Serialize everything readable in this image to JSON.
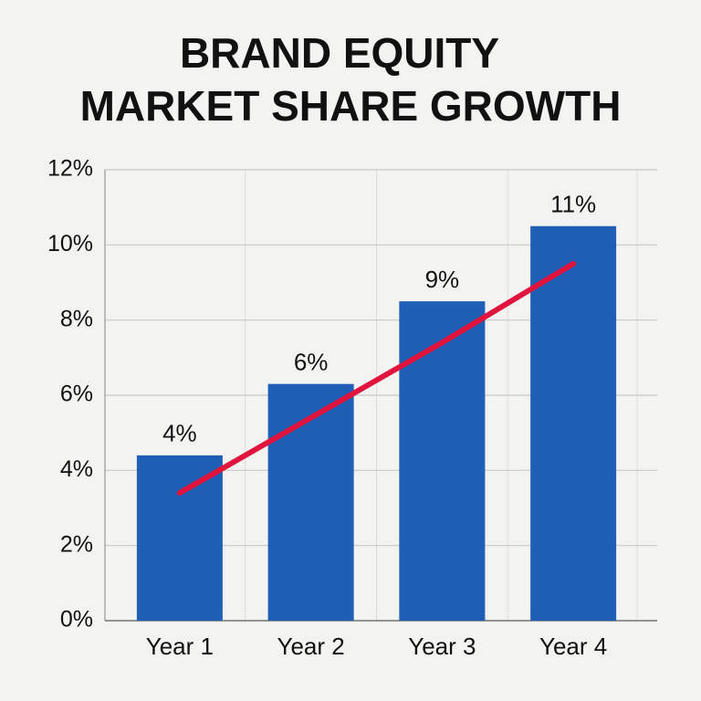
{
  "chart_data": {
    "type": "bar",
    "title": [
      "BRAND EQUITY",
      "MARKET SHARE GROWTH"
    ],
    "categories": [
      "Year 1",
      "Year 2",
      "Year 3",
      "Year 4"
    ],
    "values": [
      4.4,
      6.3,
      8.5,
      10.5
    ],
    "value_labels": [
      "4%",
      "6%",
      "9%",
      "11%"
    ],
    "color": "#1f5fb5",
    "trend": {
      "color": "#e0143c",
      "values": [
        3.4,
        5.4,
        7.4,
        9.5
      ]
    },
    "ylim": [
      0,
      12
    ],
    "yticks": [
      {
        "value": 0,
        "label": "0%"
      },
      {
        "value": 2,
        "label": "2%"
      },
      {
        "value": 4,
        "label": "4%"
      },
      {
        "value": 6,
        "label": "6%"
      },
      {
        "value": 8,
        "label": "8%"
      },
      {
        "value": 10,
        "label": "10%"
      },
      {
        "value": 12,
        "label": "12%"
      }
    ],
    "grid": true
  }
}
